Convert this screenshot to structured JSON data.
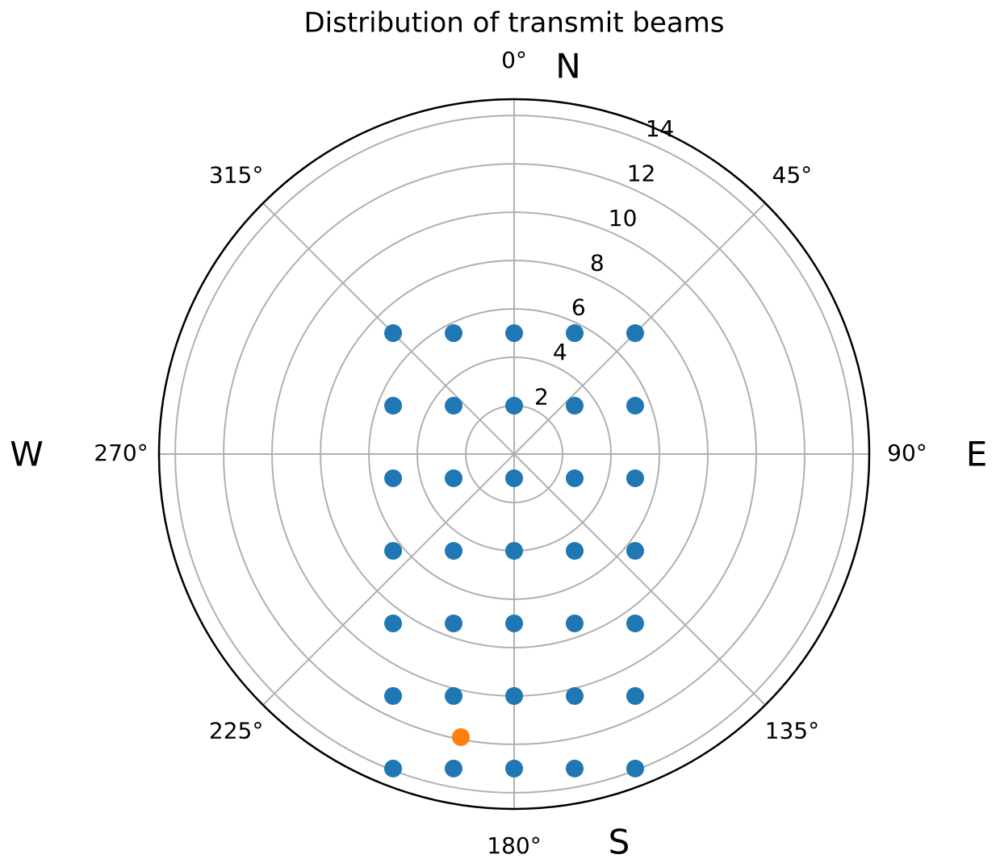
{
  "chart_data": {
    "type": "polar_scatter",
    "title": "Distribution of transmit beams",
    "theta_direction": "clockwise",
    "theta_zero": "N",
    "rlim": [
      0,
      14.67
    ],
    "rticks": [
      2,
      4,
      6,
      8,
      10,
      12,
      14
    ],
    "thetaticks": [
      {
        "value": 0,
        "label": "0°"
      },
      {
        "value": 45,
        "label": "45°"
      },
      {
        "value": 90,
        "label": "90°"
      },
      {
        "value": 135,
        "label": "135°"
      },
      {
        "value": 180,
        "label": "180°"
      },
      {
        "value": 225,
        "label": "225°"
      },
      {
        "value": 270,
        "label": "270°"
      },
      {
        "value": 315,
        "label": "315°"
      }
    ],
    "grid": true,
    "annotations": [
      "N",
      "E",
      "S",
      "W"
    ],
    "series": [
      {
        "color": "#1f77b4",
        "theta": [
          0,
          26.57,
          45,
          333.43,
          315,
          0,
          51.34,
          68.2,
          308.66,
          291.8,
          180,
          111.8,
          101.31,
          248.2,
          258.69,
          180,
          148.0,
          128.66,
          212.0,
          231.34,
          180,
          160.35,
          144.46,
          199.65,
          215.54,
          180,
          165.96,
          153.43,
          194.04,
          206.57,
          180,
          169.11,
          158.96,
          190.89,
          201.04
        ],
        "r": [
          5,
          5.59,
          7.071,
          5.59,
          7.071,
          2,
          3.202,
          5.385,
          3.202,
          5.385,
          1,
          2.693,
          5.099,
          2.693,
          5.099,
          4,
          4.717,
          6.403,
          4.717,
          6.403,
          7,
          7.433,
          8.602,
          7.433,
          8.602,
          10,
          10.308,
          11.18,
          10.308,
          11.18,
          13,
          13.238,
          13.928,
          13.238,
          13.928
        ]
      },
      {
        "color": "#ff7f0e",
        "theta": [
          190.65
        ],
        "r": [
          11.905
        ]
      }
    ]
  }
}
